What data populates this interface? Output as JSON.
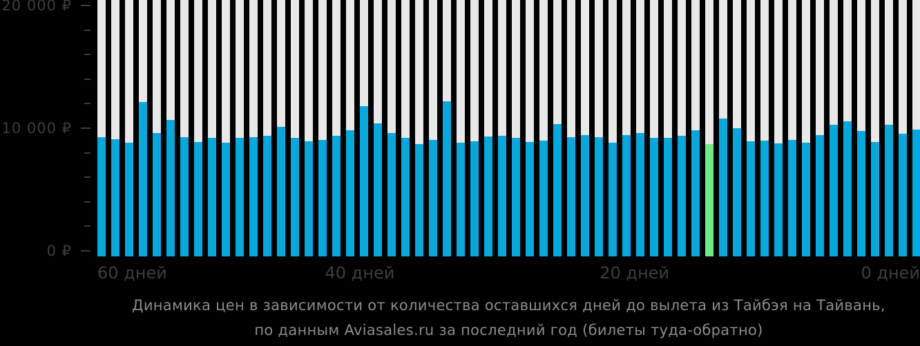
{
  "chart_data": {
    "type": "bar",
    "title": "Динамика цен в зависимости от количества оставшихся дней до вылета из Тайбэя на Тайвань,",
    "subtitle": "по данным Aviasales.ru за последний год (билеты туда-обратно)",
    "currency": "₽",
    "ylim": [
      0,
      20000
    ],
    "y_ticks": [
      {
        "value": 20000,
        "label": "20 000 ₽"
      },
      {
        "value": 10000,
        "label": "10 000 ₽"
      },
      {
        "value": 0,
        "label": "0 ₽"
      }
    ],
    "minor_tick_step": 2000,
    "x_ticks": [
      {
        "label": "60 дней",
        "position_pct": 0,
        "align": "left"
      },
      {
        "label": "40 дней",
        "position_pct": 31.9,
        "align": "center"
      },
      {
        "label": "20 дней",
        "position_pct": 65.3,
        "align": "center"
      },
      {
        "label": "0 дней",
        "position_pct": 100,
        "align": "right"
      }
    ],
    "x_order": "60 days left (leftmost bar) down to 0 days (rightmost bar)",
    "values": [
      9500,
      9350,
      9050,
      12300,
      9850,
      10900,
      9500,
      9100,
      9450,
      9050,
      9450,
      9500,
      9600,
      10350,
      9450,
      9200,
      9300,
      9600,
      10050,
      12000,
      10600,
      9850,
      9450,
      8950,
      9300,
      12350,
      9050,
      9200,
      9550,
      9600,
      9450,
      9100,
      9250,
      10550,
      9500,
      9650,
      9500,
      9050,
      9650,
      9850,
      9450,
      9450,
      9600,
      10050,
      8950,
      11000,
      10200,
      9200,
      9250,
      9000,
      9300,
      9050,
      9650,
      10500,
      10750,
      10000,
      9100,
      10500,
      9800,
      10100
    ],
    "highlight_index": 44,
    "legend_position": "none",
    "grid": false,
    "colors": {
      "bar": "#04aadd",
      "highlight": "#6dec89",
      "background_bar": "#e8e8e8",
      "axis_text": "#3e3e3e",
      "caption_text": "#8c8c8c",
      "page_background": "#000000"
    }
  }
}
